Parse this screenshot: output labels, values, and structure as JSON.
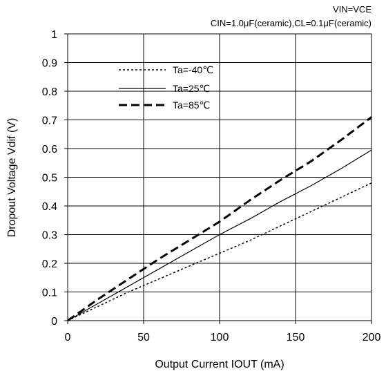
{
  "chart_data": {
    "type": "line",
    "annotations": [
      "VIN=VCE",
      "CIN=1.0μF(ceramic),CL=0.1μF(ceramic)"
    ],
    "xlabel": "Output Current IOUT (mA)",
    "ylabel": "Dropout Voltage Vdif (V)",
    "xlim": [
      0,
      200
    ],
    "ylim": [
      0,
      1
    ],
    "x_ticks": [
      0,
      50,
      100,
      150,
      200
    ],
    "y_ticks": [
      0,
      0.1,
      0.2,
      0.3,
      0.4,
      0.5,
      0.6,
      0.7,
      0.8,
      0.9,
      1
    ],
    "grid": true,
    "legend_position": "top-left",
    "series": [
      {
        "name": "Ta=-40℃",
        "style": "dotted",
        "color": "#000000",
        "x": [
          0,
          20,
          40,
          60,
          80,
          100,
          120,
          140,
          160,
          180,
          200
        ],
        "y": [
          0,
          0.05,
          0.1,
          0.145,
          0.19,
          0.235,
          0.28,
          0.33,
          0.38,
          0.43,
          0.48
        ]
      },
      {
        "name": "Ta=25℃",
        "style": "solid",
        "color": "#000000",
        "x": [
          0,
          20,
          40,
          60,
          80,
          100,
          120,
          140,
          160,
          180,
          200
        ],
        "y": [
          0,
          0.06,
          0.12,
          0.18,
          0.24,
          0.3,
          0.355,
          0.415,
          0.47,
          0.53,
          0.595
        ]
      },
      {
        "name": "Ta=85℃",
        "style": "dashed",
        "color": "#000000",
        "x": [
          0,
          20,
          40,
          60,
          80,
          100,
          120,
          140,
          160,
          180,
          200
        ],
        "y": [
          0,
          0.075,
          0.145,
          0.215,
          0.28,
          0.345,
          0.42,
          0.49,
          0.555,
          0.63,
          0.71
        ]
      }
    ]
  }
}
